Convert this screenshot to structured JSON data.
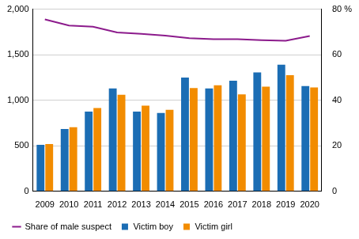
{
  "chart_data": {
    "type": "bar",
    "categories": [
      "2009",
      "2010",
      "2011",
      "2012",
      "2013",
      "2014",
      "2015",
      "2016",
      "2017",
      "2018",
      "2019",
      "2020"
    ],
    "series": [
      {
        "name": "Victim boy",
        "color": "#1b6db4",
        "values": [
          510,
          685,
          875,
          1130,
          875,
          860,
          1250,
          1130,
          1215,
          1305,
          1390,
          1155
        ]
      },
      {
        "name": "Victim girl",
        "color": "#f28c00",
        "values": [
          520,
          705,
          915,
          1060,
          940,
          895,
          1135,
          1165,
          1065,
          1150,
          1275,
          1140
        ]
      },
      {
        "name": "Share of male suspect",
        "color": "#8c1b8c",
        "type": "line",
        "axis": "y2",
        "marker": "none",
        "values": [
          75.5,
          72.8,
          72.3,
          69.8,
          69.2,
          68.4,
          67.3,
          66.8,
          66.8,
          66.4,
          66.1,
          68.2
        ]
      }
    ],
    "ylim": [
      0,
      2000
    ],
    "yticks": [
      0,
      500,
      {
        "value": 1000,
        "label": "1,000"
      },
      {
        "value": 1500,
        "label": "1,500"
      },
      {
        "value": 2000,
        "label": "2,000"
      }
    ],
    "y2lim": [
      0,
      80
    ],
    "y2ticks": [
      0,
      20,
      40,
      60,
      {
        "value": 80,
        "label": "80 %"
      }
    ],
    "grid": true,
    "legend": "bottom"
  }
}
